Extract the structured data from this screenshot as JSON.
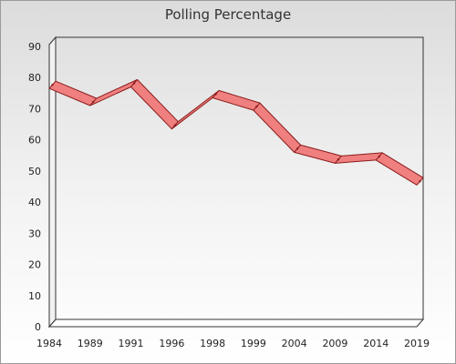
{
  "chart_data": {
    "type": "line",
    "title": "Polling Percentage",
    "xlabel": "",
    "ylabel": "",
    "categories": [
      "1984",
      "1989",
      "1991",
      "1996",
      "1998",
      "1999",
      "2004",
      "2009",
      "2014",
      "2019"
    ],
    "series": [
      {
        "values": [
          76.5,
          71.0,
          77.0,
          63.5,
          73.5,
          69.5,
          56.0,
          52.5,
          53.5,
          45.5
        ]
      }
    ],
    "ylim": [
      0,
      90
    ],
    "yticks": [
      0,
      10,
      20,
      30,
      40,
      50,
      60,
      70,
      80,
      90
    ],
    "grid": false,
    "legend": "none",
    "colors": {
      "ribbon_fill": "#f08080",
      "ribbon_edge": "#8b1a1a",
      "frame": "#333333"
    }
  }
}
